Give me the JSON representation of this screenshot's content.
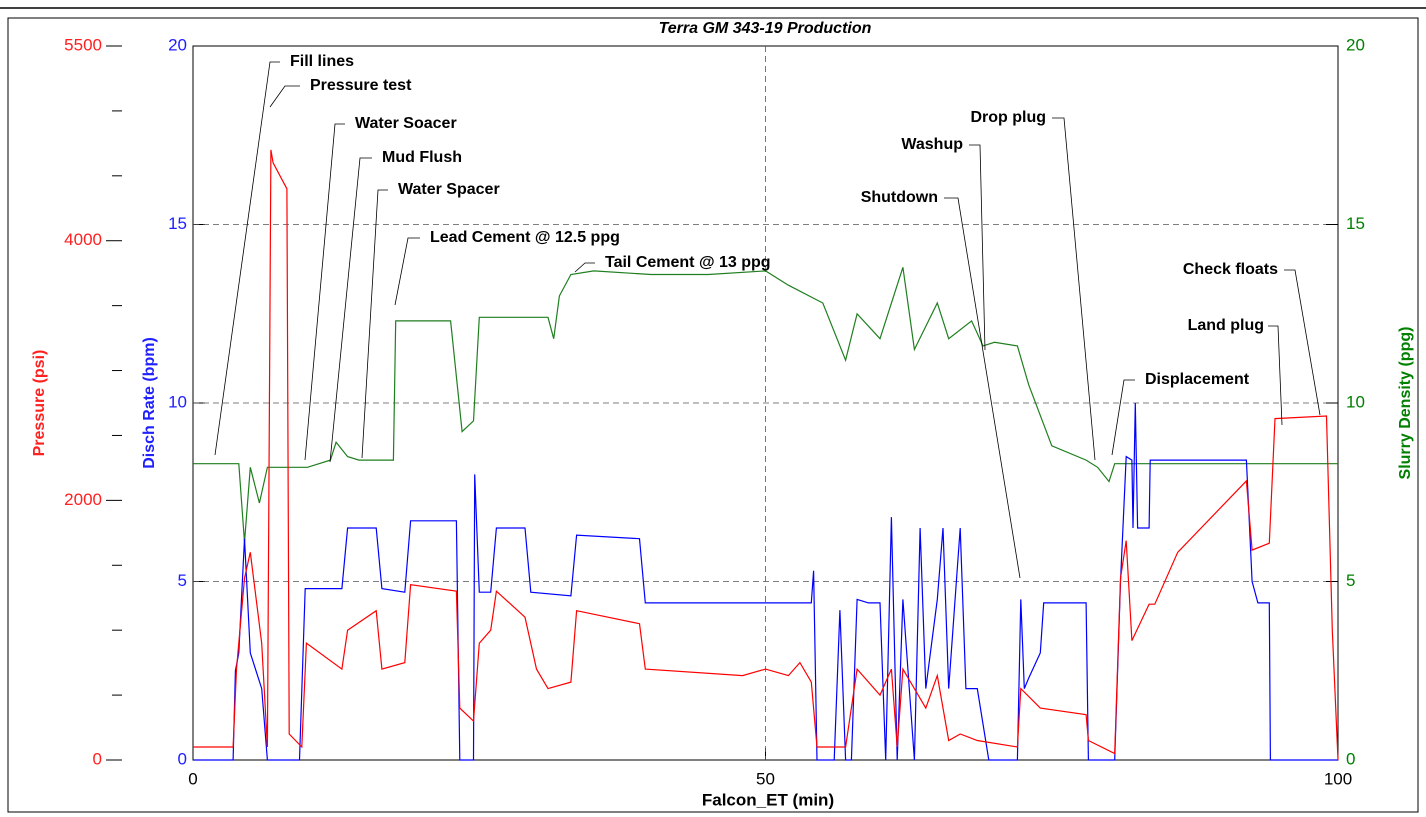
{
  "chart_data": {
    "type": "line",
    "title": "Terra GM 343-19 Production",
    "xlabel": "Falcon_ET (min)",
    "ylabel": "Disch Rate (bpm)",
    "y2label": "Slurry Density (ppg)",
    "y3label": "Pressure (psi)",
    "xlim": [
      0,
      100
    ],
    "xticks": [
      0,
      50,
      100
    ],
    "ylim": [
      0,
      20
    ],
    "yticks": [
      0,
      5,
      10,
      15,
      20
    ],
    "y2lim": [
      0,
      20
    ],
    "y2ticks": [
      0,
      5,
      10,
      15,
      20
    ],
    "y3lim": [
      0,
      5500
    ],
    "y3ticks": [
      0,
      2000,
      4000,
      5500
    ],
    "y3minorticks": [
      500,
      1000,
      1500,
      2500,
      3000,
      3500,
      4500,
      5000
    ],
    "grid": true,
    "annotations": [
      "Fill lines",
      "Pressure test",
      "Water Soacer",
      "Mud Flush",
      "Water Spacer",
      "Lead Cement @ 12.5 ppg",
      "Tail Cement @ 13 ppg",
      "Shutdown",
      "Washup",
      "Drop plug",
      "Check floats",
      "Land plug",
      "Displacement"
    ],
    "series": [
      {
        "name": "Slurry Density",
        "color": "#1f7f1f",
        "axis": "y2",
        "x": [
          0,
          4,
          4.5,
          5,
          5.8,
          6.5,
          10,
          12,
          12.5,
          13.5,
          14.5,
          17.5,
          17.7,
          22.5,
          23.5,
          24.5,
          25,
          31,
          31.5,
          32,
          33,
          35,
          40,
          45,
          50,
          52,
          55,
          57,
          58,
          60,
          62,
          63,
          65,
          66,
          68,
          69,
          70,
          72,
          73,
          75,
          78,
          79,
          80,
          80.5,
          83,
          100
        ],
        "values": [
          8.3,
          8.3,
          6.1,
          8.2,
          7.2,
          8.2,
          8.2,
          8.4,
          8.9,
          8.5,
          8.4,
          8.4,
          12.3,
          12.3,
          9.2,
          9.5,
          12.4,
          12.4,
          11.8,
          13.0,
          13.6,
          13.7,
          13.6,
          13.6,
          13.7,
          13.3,
          12.8,
          11.2,
          12.5,
          11.8,
          13.8,
          11.5,
          12.8,
          11.8,
          12.3,
          11.6,
          11.7,
          11.6,
          10.5,
          8.8,
          8.4,
          8.2,
          7.8,
          8.3,
          8.3,
          8.3
        ]
      },
      {
        "name": "Disch Rate",
        "color": "#0000ff",
        "axis": "y",
        "x": [
          0,
          3.5,
          3.7,
          4,
          4.5,
          5,
          6,
          6.5,
          9.3,
          9.8,
          13,
          13.5,
          16,
          16.5,
          18.5,
          19,
          23,
          23.3,
          24.5,
          24.6,
          25,
          26,
          26.5,
          29,
          29.5,
          33,
          33.5,
          39,
          39.5,
          54,
          54.2,
          54.5,
          56,
          56.5,
          57,
          57.5,
          58,
          59,
          60,
          60.5,
          61,
          61.5,
          62,
          63,
          63.5,
          64,
          65,
          65.5,
          66,
          67,
          67.5,
          68.5,
          69.5,
          72,
          72.3,
          72.6,
          73,
          74,
          74.3,
          78,
          78.2,
          80.5,
          81,
          81.5,
          82,
          82.1,
          82.3,
          82.5,
          83.5,
          83.6,
          92,
          92.5,
          93,
          94,
          94.1,
          100
        ],
        "values": [
          0,
          0,
          2.5,
          3,
          6.2,
          3,
          2,
          0,
          0,
          4.8,
          4.8,
          6.5,
          6.5,
          4.8,
          4.7,
          6.7,
          6.7,
          0,
          0,
          8,
          4.7,
          4.7,
          6.5,
          6.5,
          4.7,
          4.6,
          6.3,
          6.2,
          4.4,
          4.4,
          5.3,
          0,
          0,
          4.2,
          0,
          0,
          4.5,
          4.4,
          4.4,
          0,
          6.8,
          0,
          4.5,
          0,
          6.5,
          2,
          4.5,
          6.5,
          2,
          6.5,
          2,
          2,
          0,
          0,
          4.5,
          2,
          2.3,
          3,
          4.4,
          4.4,
          0,
          0,
          5,
          8.5,
          8.4,
          6.5,
          10,
          6.5,
          6.5,
          8.4,
          8.4,
          5,
          4.4,
          4.4,
          0,
          0
        ]
      },
      {
        "name": "Pressure",
        "color": "#ff0000",
        "axis": "y3",
        "x": [
          0,
          3.5,
          3.8,
          4.5,
          5,
          6,
          6.5,
          6.8,
          7,
          8.2,
          8.4,
          9.5,
          9.9,
          13,
          13.5,
          16,
          16.5,
          18.5,
          19,
          23,
          23.3,
          24.5,
          25,
          26,
          26.5,
          29,
          30,
          31,
          33,
          33.5,
          39,
          39.5,
          48,
          50,
          52,
          53,
          54,
          54.5,
          57,
          58,
          60,
          61,
          61.5,
          62,
          64,
          65,
          66,
          67,
          68.5,
          72,
          72.3,
          74,
          78,
          78.2,
          80.5,
          81,
          81.5,
          82,
          83.5,
          84,
          86,
          92,
          92.5,
          94,
          94.5,
          99,
          99.5,
          100
        ],
        "values": [
          100,
          100,
          700,
          1400,
          1600,
          900,
          100,
          4700,
          4600,
          4400,
          200,
          100,
          900,
          700,
          1000,
          1150,
          700,
          750,
          1350,
          1300,
          400,
          300,
          900,
          1000,
          1300,
          1100,
          700,
          550,
          600,
          1150,
          1050,
          700,
          650,
          700,
          650,
          750,
          600,
          100,
          100,
          700,
          500,
          700,
          100,
          700,
          400,
          650,
          150,
          200,
          150,
          100,
          550,
          400,
          350,
          150,
          50,
          1400,
          1690,
          920,
          1200,
          1200,
          1600,
          2150,
          1617,
          1670,
          2630,
          2650,
          1000,
          0
        ]
      }
    ]
  }
}
